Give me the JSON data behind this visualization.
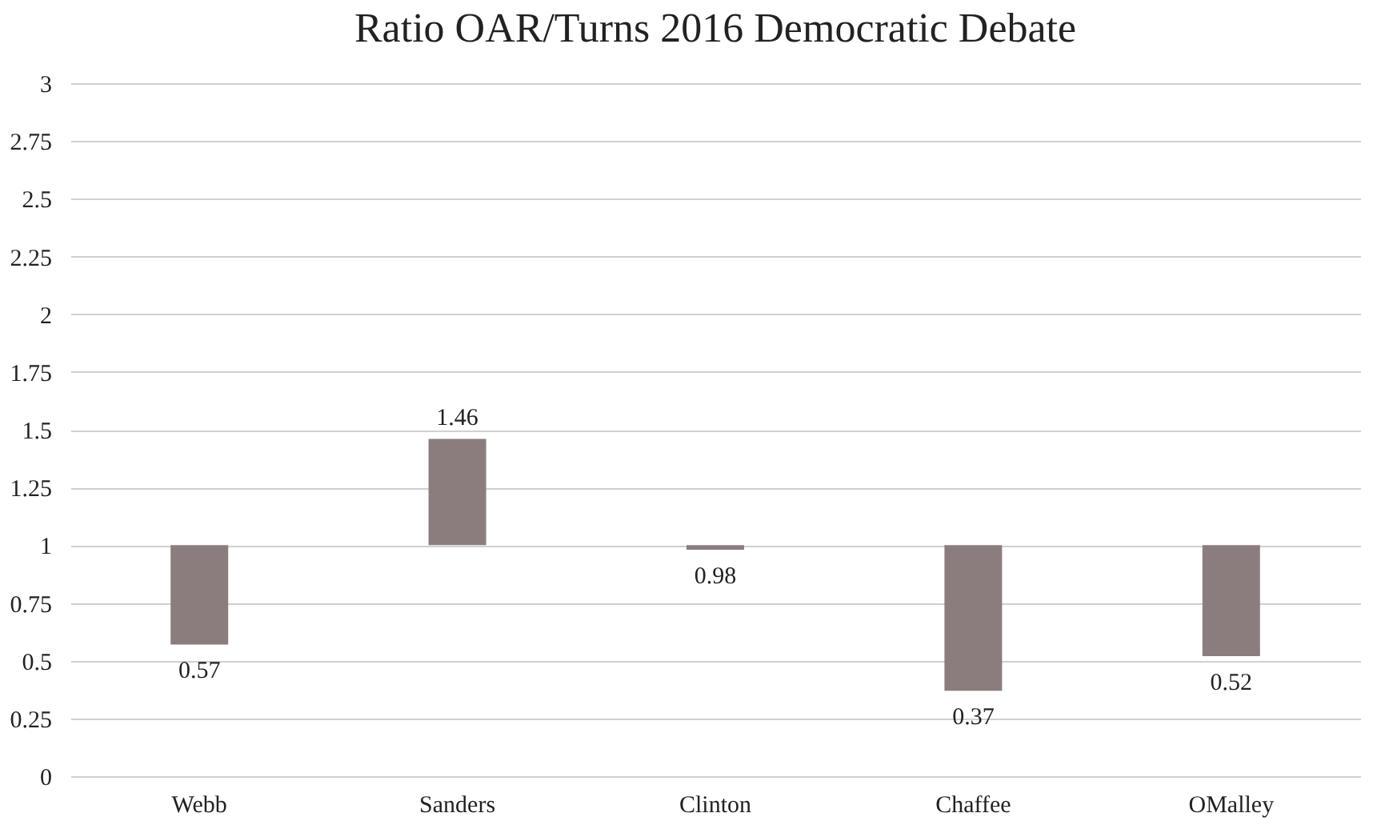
{
  "chart_data": {
    "type": "bar",
    "title": "Ratio OAR/Turns 2016 Democratic Debate",
    "categories": [
      "Webb",
      "Sanders",
      "Clinton",
      "Chaffee",
      "OMalley"
    ],
    "base": [
      1,
      1,
      1,
      1,
      1
    ],
    "values": [
      -0.43,
      0.46,
      -0.02,
      -0.63,
      -0.48
    ],
    "value_labels": [
      "0.57",
      "1.46",
      "0.98",
      "0.37",
      "0.52"
    ],
    "color": "#8b7d7e",
    "ylim": [
      0,
      3
    ],
    "yticks": [
      0,
      0.25,
      0.5,
      0.75,
      1,
      1.25,
      1.5,
      1.75,
      2,
      2.25,
      2.5,
      2.75,
      3
    ],
    "grid": "y"
  }
}
